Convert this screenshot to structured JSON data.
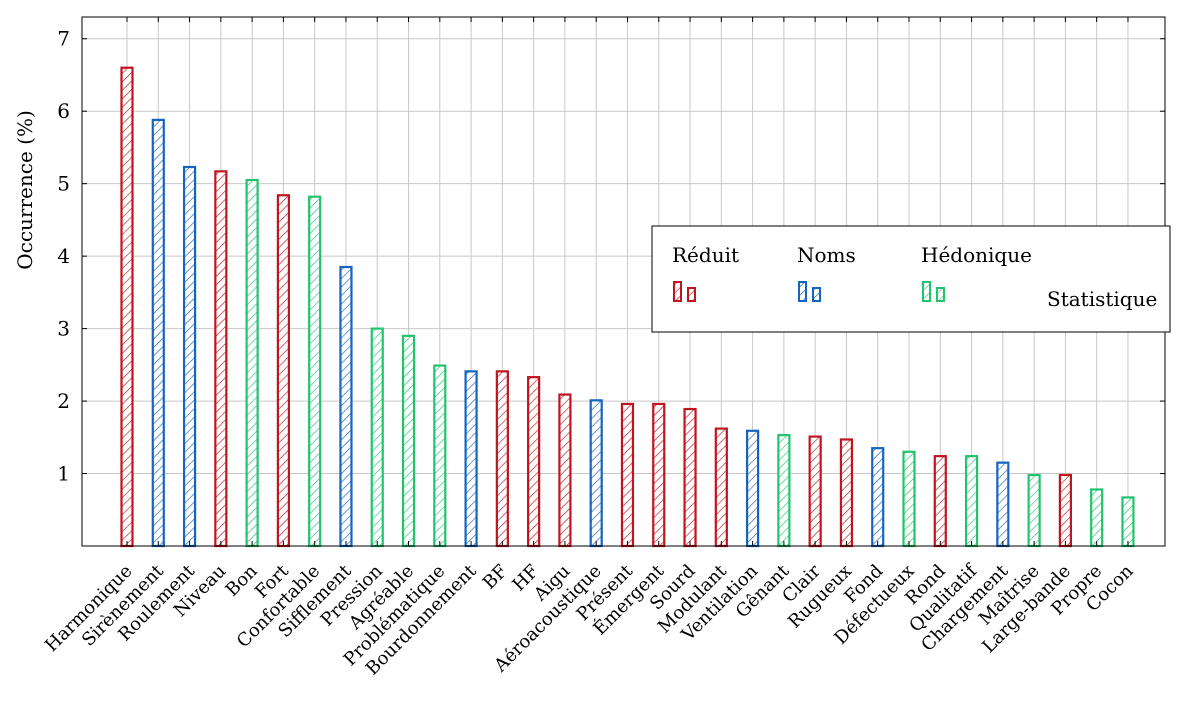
{
  "chart_data": {
    "type": "bar",
    "ylabel": "Occurrence (%)",
    "xlabel": "",
    "ylim": [
      0,
      7.3
    ],
    "yticks": [
      1,
      2,
      3,
      4,
      5,
      6,
      7
    ],
    "grid": true,
    "legend_position": "right",
    "groups": [
      {
        "name": "Réduit",
        "color": "#c0141f"
      },
      {
        "name": "Noms",
        "color": "#1565c0"
      },
      {
        "name": "Hédonique",
        "color": "#22c26e"
      }
    ],
    "legend_extra_label": "Statistique",
    "categories": [
      "Harmonique",
      "Sirènement",
      "Roulement",
      "Niveau",
      "Bon",
      "Fort",
      "Confortable",
      "Sifflement",
      "Pression",
      "Agréable",
      "Problématique",
      "Bourdonnement",
      "BF",
      "HF",
      "Aigu",
      "Aéroacoustique",
      "Présent",
      "Émergent",
      "Sourd",
      "Modulant",
      "Ventilation",
      "Gênant",
      "Clair",
      "Rugueux",
      "Fond",
      "Défectueux",
      "Rond",
      "Qualitatif",
      "Chargement",
      "Maîtrise",
      "Large-bande",
      "Propre",
      "Cocon"
    ],
    "values": [
      6.6,
      5.88,
      5.23,
      5.17,
      5.05,
      4.84,
      4.82,
      3.85,
      3.0,
      2.9,
      2.49,
      2.41,
      2.41,
      2.33,
      2.09,
      2.01,
      1.96,
      1.96,
      1.89,
      1.62,
      1.59,
      1.53,
      1.51,
      1.47,
      1.35,
      1.3,
      1.24,
      1.24,
      1.15,
      0.98,
      0.98,
      0.78,
      0.67
    ],
    "groupIndex": [
      0,
      1,
      1,
      0,
      2,
      0,
      2,
      1,
      2,
      2,
      2,
      1,
      0,
      0,
      0,
      1,
      0,
      0,
      0,
      0,
      1,
      2,
      0,
      0,
      1,
      2,
      0,
      2,
      1,
      2,
      0,
      2,
      2
    ]
  }
}
